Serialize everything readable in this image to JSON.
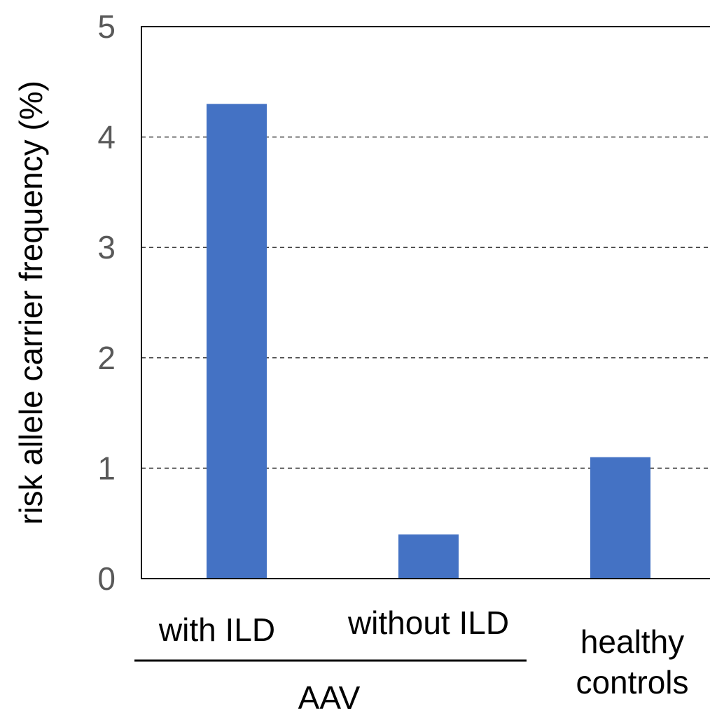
{
  "chart_data": {
    "type": "bar",
    "categories": [
      "with ILD",
      "without ILD",
      "healthy controls"
    ],
    "category_lines": [
      [
        "with ILD"
      ],
      [
        "without ILD"
      ],
      [
        "healthy",
        "controls"
      ]
    ],
    "values": [
      4.3,
      0.4,
      1.1
    ],
    "ylabel": "risk allele carrier frequency (%)",
    "ylim": [
      0,
      5
    ],
    "yticks": [
      "0",
      "1",
      "2",
      "3",
      "4",
      "5"
    ],
    "group_label": "AAV",
    "grid": "horizontal dashed",
    "bar_color": "#4472C4",
    "grid_color": "#404040"
  }
}
